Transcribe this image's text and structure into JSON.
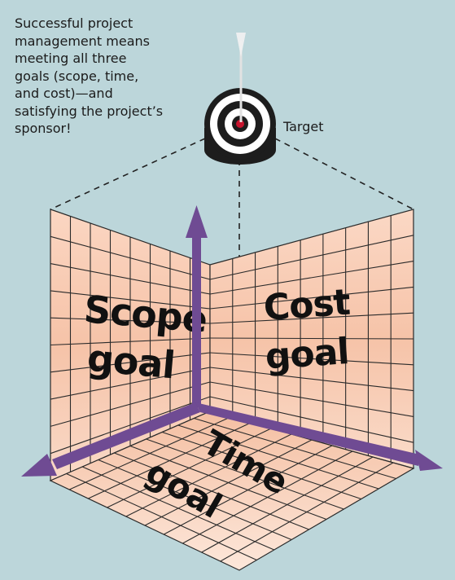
{
  "caption_lines": [
    "Successful project",
    "management means",
    "meeting all three",
    "goals (scope, time,",
    "and cost)—and",
    "satisfying the project’s",
    "sponsor!"
  ],
  "target_label": "Target",
  "scope_goal": {
    "line1": "Scope",
    "line2": "goal"
  },
  "cost_goal": {
    "line1": "Cost",
    "line2": "goal"
  },
  "time_goal": {
    "line1": "Time",
    "line2": "goal"
  },
  "colors": {
    "background": "#bcd6da",
    "axis": "#6f4b93",
    "grid_fill": "#f8c7ae",
    "grid_line": "#2a2a2a"
  }
}
